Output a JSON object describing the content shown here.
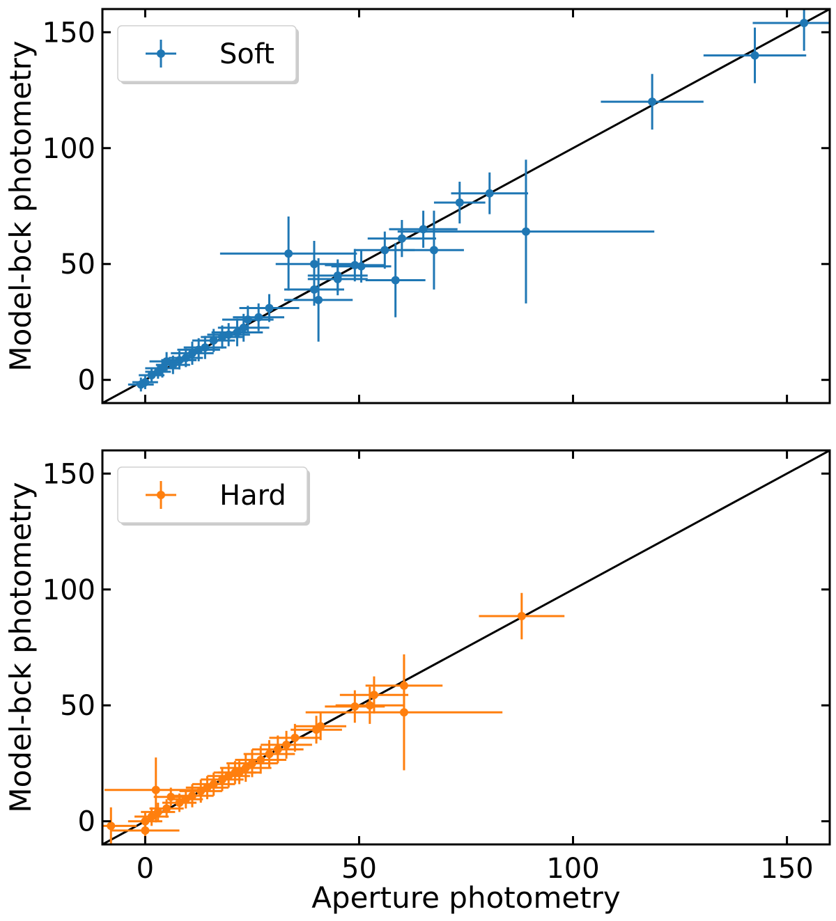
{
  "figure": {
    "xlabel": "Aperture photometry",
    "ylabel": "Model-bck photometry"
  },
  "colors": {
    "soft": "#1f77b4",
    "hard": "#ff7f0e",
    "identity": "#000000",
    "frame": "#000000"
  },
  "chart_data": [
    {
      "type": "scatter",
      "title": "",
      "legend": "Soft",
      "legend_position": "top-left",
      "xlabel": "",
      "ylabel": "Model-bck photometry",
      "xlim": [
        -10,
        160
      ],
      "ylim": [
        -10,
        160
      ],
      "xticks": [
        0,
        50,
        100,
        150
      ],
      "yticks": [
        0,
        50,
        100,
        150
      ],
      "show_xtick_labels": false,
      "reference_line": "y = x",
      "series": [
        {
          "name": "Soft",
          "points": [
            {
              "x": 154,
              "y": 154,
              "xerr": 12,
              "yerr": 12
            },
            {
              "x": 142.5,
              "y": 140,
              "xerr": 12,
              "yerr": 12
            },
            {
              "x": 118.5,
              "y": 120,
              "xerr": 12,
              "yerr": 12
            },
            {
              "x": 89,
              "y": 64,
              "xerr": 30,
              "yerr": 31
            },
            {
              "x": 80.5,
              "y": 80.5,
              "xerr": 9,
              "yerr": 9
            },
            {
              "x": 73.5,
              "y": 76.5,
              "xerr": 6,
              "yerr": 9
            },
            {
              "x": 65,
              "y": 65,
              "xerr": 8,
              "yerr": 8
            },
            {
              "x": 67.5,
              "y": 56,
              "xerr": 7,
              "yerr": 17
            },
            {
              "x": 60,
              "y": 61,
              "xerr": 8,
              "yerr": 8
            },
            {
              "x": 56,
              "y": 56,
              "xerr": 7,
              "yerr": 8
            },
            {
              "x": 58.5,
              "y": 43,
              "xerr": 7,
              "yerr": 16
            },
            {
              "x": 50.5,
              "y": 49,
              "xerr": 7,
              "yerr": 7
            },
            {
              "x": 49,
              "y": 49.5,
              "xerr": 7,
              "yerr": 7
            },
            {
              "x": 45,
              "y": 45,
              "xerr": 7,
              "yerr": 7
            },
            {
              "x": 45,
              "y": 43.5,
              "xerr": 7,
              "yerr": 7
            },
            {
              "x": 33.5,
              "y": 54.5,
              "xerr": 16,
              "yerr": 16
            },
            {
              "x": 39.5,
              "y": 50,
              "xerr": 9,
              "yerr": 10
            },
            {
              "x": 39.5,
              "y": 39,
              "xerr": 7,
              "yerr": 7
            },
            {
              "x": 40.5,
              "y": 34.5,
              "xerr": 8,
              "yerr": 18
            },
            {
              "x": 29,
              "y": 31,
              "xerr": 7,
              "yerr": 6
            },
            {
              "x": 26.5,
              "y": 27,
              "xerr": 6,
              "yerr": 6
            },
            {
              "x": 24,
              "y": 26,
              "xerr": 6,
              "yerr": 6
            },
            {
              "x": 23,
              "y": 22.5,
              "xerr": 6,
              "yerr": 6
            },
            {
              "x": 21.5,
              "y": 20.5,
              "xerr": 6,
              "yerr": 6
            },
            {
              "x": 19.5,
              "y": 19.5,
              "xerr": 5,
              "yerr": 5
            },
            {
              "x": 18,
              "y": 18.5,
              "xerr": 5,
              "yerr": 5
            },
            {
              "x": 16,
              "y": 17,
              "xerr": 5,
              "yerr": 5
            },
            {
              "x": 14,
              "y": 14,
              "xerr": 5,
              "yerr": 5
            },
            {
              "x": 12.5,
              "y": 13,
              "xerr": 5,
              "yerr": 5
            },
            {
              "x": 11,
              "y": 11.5,
              "xerr": 5,
              "yerr": 5
            },
            {
              "x": 9.5,
              "y": 9.5,
              "xerr": 4,
              "yerr": 4
            },
            {
              "x": 8,
              "y": 8.5,
              "xerr": 4,
              "yerr": 4
            },
            {
              "x": 6.5,
              "y": 6.5,
              "xerr": 4,
              "yerr": 4
            },
            {
              "x": 5,
              "y": 8,
              "xerr": 4,
              "yerr": 4
            },
            {
              "x": 4,
              "y": 5,
              "xerr": 4,
              "yerr": 4
            },
            {
              "x": 3,
              "y": 3.5,
              "xerr": 3,
              "yerr": 3
            },
            {
              "x": 1.5,
              "y": 2,
              "xerr": 3,
              "yerr": 3
            },
            {
              "x": 0,
              "y": -1,
              "xerr": 3,
              "yerr": 3
            },
            {
              "x": -1,
              "y": -2,
              "xerr": 3,
              "yerr": 3
            }
          ]
        }
      ]
    },
    {
      "type": "scatter",
      "title": "",
      "legend": "Hard",
      "legend_position": "top-left",
      "xlabel": "Aperture photometry",
      "ylabel": "Model-bck photometry",
      "xlim": [
        -10,
        160
      ],
      "ylim": [
        -10,
        160
      ],
      "xticks": [
        0,
        50,
        100,
        150
      ],
      "yticks": [
        0,
        50,
        100,
        150
      ],
      "show_xtick_labels": true,
      "reference_line": "y = x",
      "series": [
        {
          "name": "Hard",
          "points": [
            {
              "x": 88,
              "y": 88.5,
              "xerr": 10,
              "yerr": 10
            },
            {
              "x": 60.5,
              "y": 58.5,
              "xerr": 9,
              "yerr": 12
            },
            {
              "x": 60.5,
              "y": 47,
              "xerr": 23,
              "yerr": 25
            },
            {
              "x": 53.5,
              "y": 54.5,
              "xerr": 8,
              "yerr": 8
            },
            {
              "x": 52.5,
              "y": 50,
              "xerr": 8,
              "yerr": 8
            },
            {
              "x": 49,
              "y": 49.5,
              "xerr": 7,
              "yerr": 7
            },
            {
              "x": 41,
              "y": 41,
              "xerr": 6,
              "yerr": 6
            },
            {
              "x": 40,
              "y": 39.5,
              "xerr": 6,
              "yerr": 6
            },
            {
              "x": 35,
              "y": 36,
              "xerr": 6,
              "yerr": 6
            },
            {
              "x": 33,
              "y": 33,
              "xerr": 6,
              "yerr": 6
            },
            {
              "x": 31,
              "y": 31,
              "xerr": 6,
              "yerr": 6
            },
            {
              "x": 29,
              "y": 29,
              "xerr": 6,
              "yerr": 6
            },
            {
              "x": 27,
              "y": 26.5,
              "xerr": 6,
              "yerr": 6
            },
            {
              "x": 25,
              "y": 25,
              "xerr": 6,
              "yerr": 6
            },
            {
              "x": 23.5,
              "y": 23,
              "xerr": 6,
              "yerr": 6
            },
            {
              "x": 22,
              "y": 21,
              "xerr": 5,
              "yerr": 5
            },
            {
              "x": 21,
              "y": 21,
              "xerr": 5,
              "yerr": 5
            },
            {
              "x": 19.5,
              "y": 19.5,
              "xerr": 5,
              "yerr": 5
            },
            {
              "x": 18,
              "y": 18,
              "xerr": 5,
              "yerr": 5
            },
            {
              "x": 16,
              "y": 16,
              "xerr": 5,
              "yerr": 5
            },
            {
              "x": 14.5,
              "y": 14.5,
              "xerr": 5,
              "yerr": 5
            },
            {
              "x": 13,
              "y": 13,
              "xerr": 5,
              "yerr": 5
            },
            {
              "x": 11,
              "y": 11,
              "xerr": 5,
              "yerr": 5
            },
            {
              "x": 9.5,
              "y": 9.5,
              "xerr": 4,
              "yerr": 4
            },
            {
              "x": 8,
              "y": 8,
              "xerr": 4,
              "yerr": 4
            },
            {
              "x": 6,
              "y": 10.5,
              "xerr": 4,
              "yerr": 4
            },
            {
              "x": 5,
              "y": 5.5,
              "xerr": 4,
              "yerr": 4
            },
            {
              "x": 3,
              "y": 4,
              "xerr": 4,
              "yerr": 4
            },
            {
              "x": 2.5,
              "y": 13.5,
              "xerr": 12,
              "yerr": 14
            },
            {
              "x": 1.5,
              "y": 2,
              "xerr": 4,
              "yerr": 4
            },
            {
              "x": 0,
              "y": 0,
              "xerr": 4,
              "yerr": 4
            },
            {
              "x": 0,
              "y": -4,
              "xerr": 8,
              "yerr": 5
            },
            {
              "x": -8,
              "y": -2,
              "xerr": 6,
              "yerr": 8
            }
          ]
        }
      ]
    }
  ]
}
